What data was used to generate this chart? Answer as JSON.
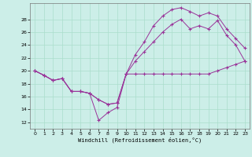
{
  "xlabel": "Windchill (Refroidissement éolien,°C)",
  "bg_color": "#cceee8",
  "line_color": "#993399",
  "grid_color": "#aaddcc",
  "xlim": [
    -0.5,
    23.5
  ],
  "ylim": [
    11,
    30.5
  ],
  "xticks": [
    0,
    1,
    2,
    3,
    4,
    5,
    6,
    7,
    8,
    9,
    10,
    11,
    12,
    13,
    14,
    15,
    16,
    17,
    18,
    19,
    20,
    21,
    22,
    23
  ],
  "yticks": [
    12,
    14,
    16,
    18,
    20,
    22,
    24,
    26,
    28
  ],
  "series1_x": [
    0,
    1,
    2,
    3,
    4,
    5,
    6,
    7,
    8,
    9,
    10,
    11,
    12,
    13,
    14,
    15,
    16,
    17,
    18,
    19,
    20,
    21,
    22,
    23
  ],
  "series1_y": [
    20,
    19.3,
    18.5,
    18.8,
    16.8,
    16.8,
    16.5,
    12.3,
    13.5,
    14.3,
    19.5,
    19.5,
    19.5,
    19.5,
    19.5,
    19.5,
    19.5,
    19.5,
    19.5,
    19.5,
    20.0,
    20.5,
    21.0,
    21.5
  ],
  "series2_x": [
    0,
    1,
    2,
    3,
    4,
    5,
    6,
    7,
    8,
    9,
    10,
    11,
    12,
    13,
    14,
    15,
    16,
    17,
    18,
    19,
    20,
    21,
    22,
    23
  ],
  "series2_y": [
    20,
    19.3,
    18.5,
    18.8,
    16.8,
    16.8,
    16.5,
    15.5,
    14.8,
    15.0,
    19.5,
    21.5,
    23.0,
    24.5,
    26.0,
    27.2,
    28.0,
    26.5,
    27.0,
    26.5,
    27.8,
    25.5,
    24.0,
    21.5
  ],
  "series3_x": [
    0,
    1,
    2,
    3,
    4,
    5,
    6,
    7,
    8,
    9,
    10,
    11,
    12,
    13,
    14,
    15,
    16,
    17,
    18,
    19,
    20,
    21,
    22,
    23
  ],
  "series3_y": [
    20,
    19.3,
    18.5,
    18.8,
    16.8,
    16.8,
    16.5,
    15.5,
    14.8,
    15.0,
    19.5,
    22.5,
    24.5,
    27.0,
    28.5,
    29.5,
    29.8,
    29.2,
    28.5,
    29.0,
    28.5,
    26.5,
    25.0,
    23.5
  ]
}
